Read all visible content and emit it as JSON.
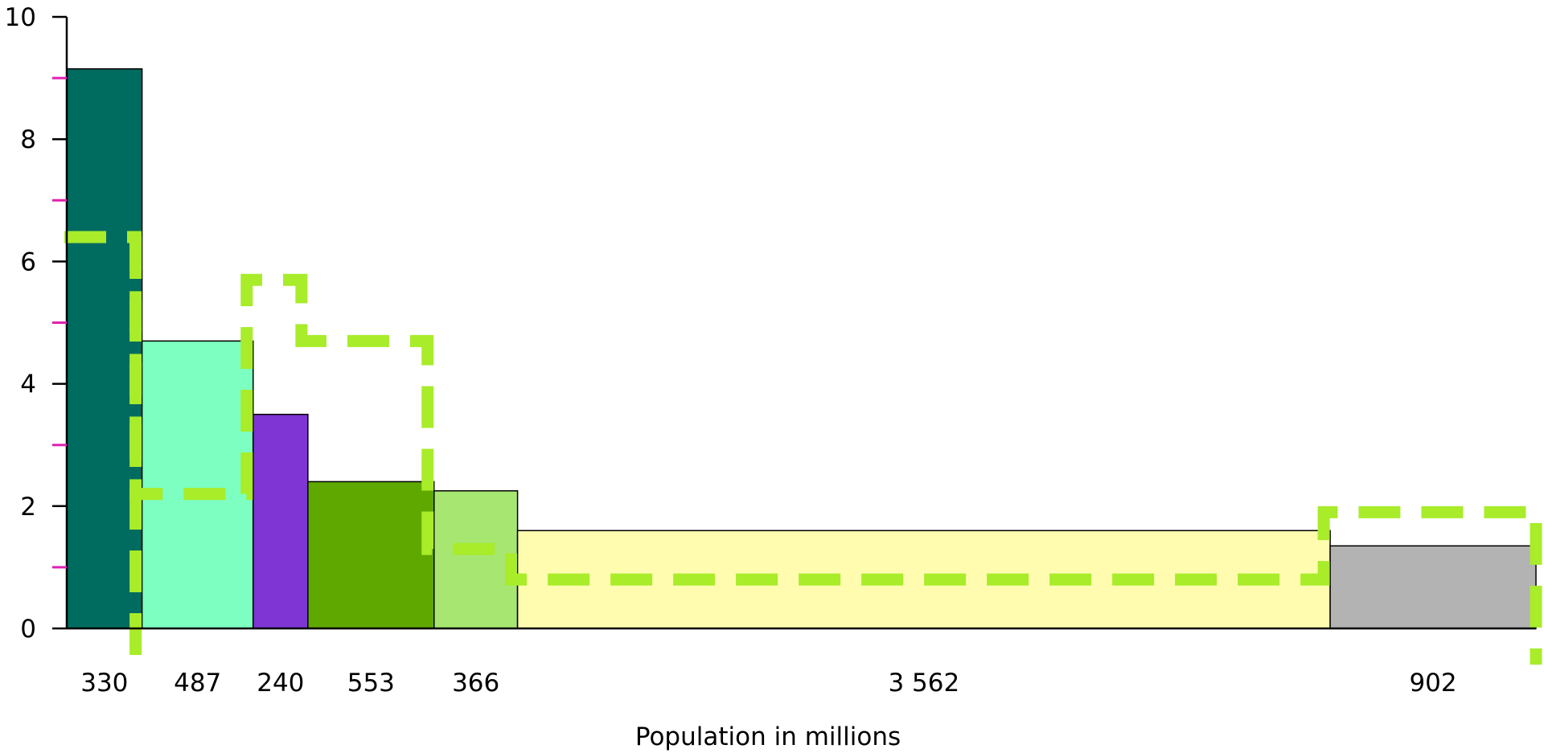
{
  "chart_data": {
    "type": "bar",
    "subtype": "variable-width bar chart",
    "title": "",
    "xlabel": "Population in millions",
    "ylabel": "",
    "ylim": [
      0,
      10
    ],
    "y_ticks": [
      "0",
      "2",
      "4",
      "6",
      "8",
      "10"
    ],
    "y_minor_ticks": [
      1,
      3,
      5,
      7,
      9
    ],
    "grid": false,
    "colors": {
      "minor_tick": "#e020b0",
      "axis": "#000000",
      "bar_outline": "#000000",
      "dashed_series": "#a8ec2a"
    },
    "series": [
      {
        "type": "bar",
        "categories": [
          "330",
          "487",
          "240",
          "553",
          "366",
          "3 562",
          "902"
        ],
        "widths": [
          330,
          487,
          240,
          553,
          366,
          3562,
          902
        ],
        "values": [
          9.15,
          4.7,
          3.5,
          2.4,
          2.25,
          1.6,
          1.35
        ],
        "colors": [
          "#006b5f",
          "#7cffc0",
          "#7f35d4",
          "#5ea800",
          "#a8e672",
          "#fffcb0",
          "#b3b3b3"
        ]
      },
      {
        "type": "step-dashed",
        "values": [
          6.4,
          2.2,
          5.7,
          4.7,
          1.3,
          0.8,
          1.9
        ]
      }
    ]
  }
}
